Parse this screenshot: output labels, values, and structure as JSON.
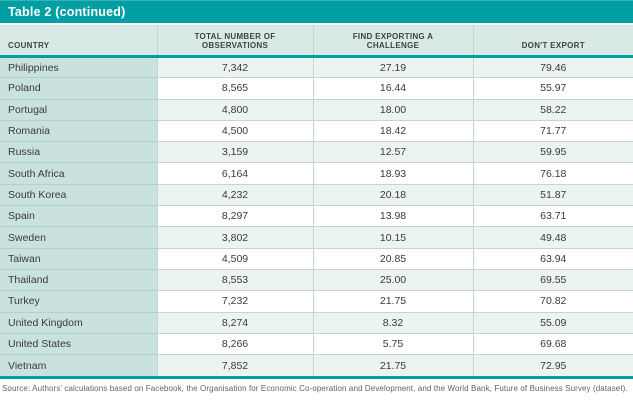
{
  "title_bar": {
    "label": "Table 2 (continued)"
  },
  "colors": {
    "accent_teal": "#019fa4",
    "header_background": "#d9e9e5",
    "country_column_background": "#c9e2dd",
    "row_stripe": "#ecf4f2",
    "grid_line": "#c2d5d1",
    "title_text": "#ffffff",
    "body_text": "#3a3a3a",
    "source_text": "#5d6664"
  },
  "chart_data": {
    "type": "table",
    "title": "Table 2 (continued)",
    "columns": [
      "COUNTRY",
      "TOTAL NUMBER OF\nOBSERVATIONS",
      "FIND EXPORTING A\nCHALLENGE",
      "DON'T EXPORT"
    ],
    "rows": [
      {
        "country": "Philippines",
        "observations": "7,342",
        "find_exporting_challenge": "27.19",
        "dont_export": "79.46"
      },
      {
        "country": "Poland",
        "observations": "8,565",
        "find_exporting_challenge": "16.44",
        "dont_export": "55.97"
      },
      {
        "country": "Portugal",
        "observations": "4,800",
        "find_exporting_challenge": "18.00",
        "dont_export": "58.22"
      },
      {
        "country": "Romania",
        "observations": "4,500",
        "find_exporting_challenge": "18.42",
        "dont_export": "71.77"
      },
      {
        "country": "Russia",
        "observations": "3,159",
        "find_exporting_challenge": "12.57",
        "dont_export": "59.95"
      },
      {
        "country": "South Africa",
        "observations": "6,164",
        "find_exporting_challenge": "18.93",
        "dont_export": "76.18"
      },
      {
        "country": "South Korea",
        "observations": "4,232",
        "find_exporting_challenge": "20.18",
        "dont_export": "51.87"
      },
      {
        "country": "Spain",
        "observations": "8,297",
        "find_exporting_challenge": "13.98",
        "dont_export": "63.71"
      },
      {
        "country": "Sweden",
        "observations": "3,802",
        "find_exporting_challenge": "10.15",
        "dont_export": "49.48"
      },
      {
        "country": "Taiwan",
        "observations": "4,509",
        "find_exporting_challenge": "20.85",
        "dont_export": "63.94"
      },
      {
        "country": "Thailand",
        "observations": "8,553",
        "find_exporting_challenge": "25.00",
        "dont_export": "69.55"
      },
      {
        "country": "Turkey",
        "observations": "7,232",
        "find_exporting_challenge": "21.75",
        "dont_export": "70.82"
      },
      {
        "country": "United Kingdom",
        "observations": "8,274",
        "find_exporting_challenge": "8.32",
        "dont_export": "55.09"
      },
      {
        "country": "United States",
        "observations": "8,266",
        "find_exporting_challenge": "5.75",
        "dont_export": "69.68"
      },
      {
        "country": "Vietnam",
        "observations": "7,852",
        "find_exporting_challenge": "21.75",
        "dont_export": "72.95"
      }
    ]
  },
  "footer": {
    "source_note": "Source: Authors' calculations based on Facebook, the Organisation for Economic Co-operation and Development, and the World Bank, Future of Business Survey (dataset)."
  }
}
